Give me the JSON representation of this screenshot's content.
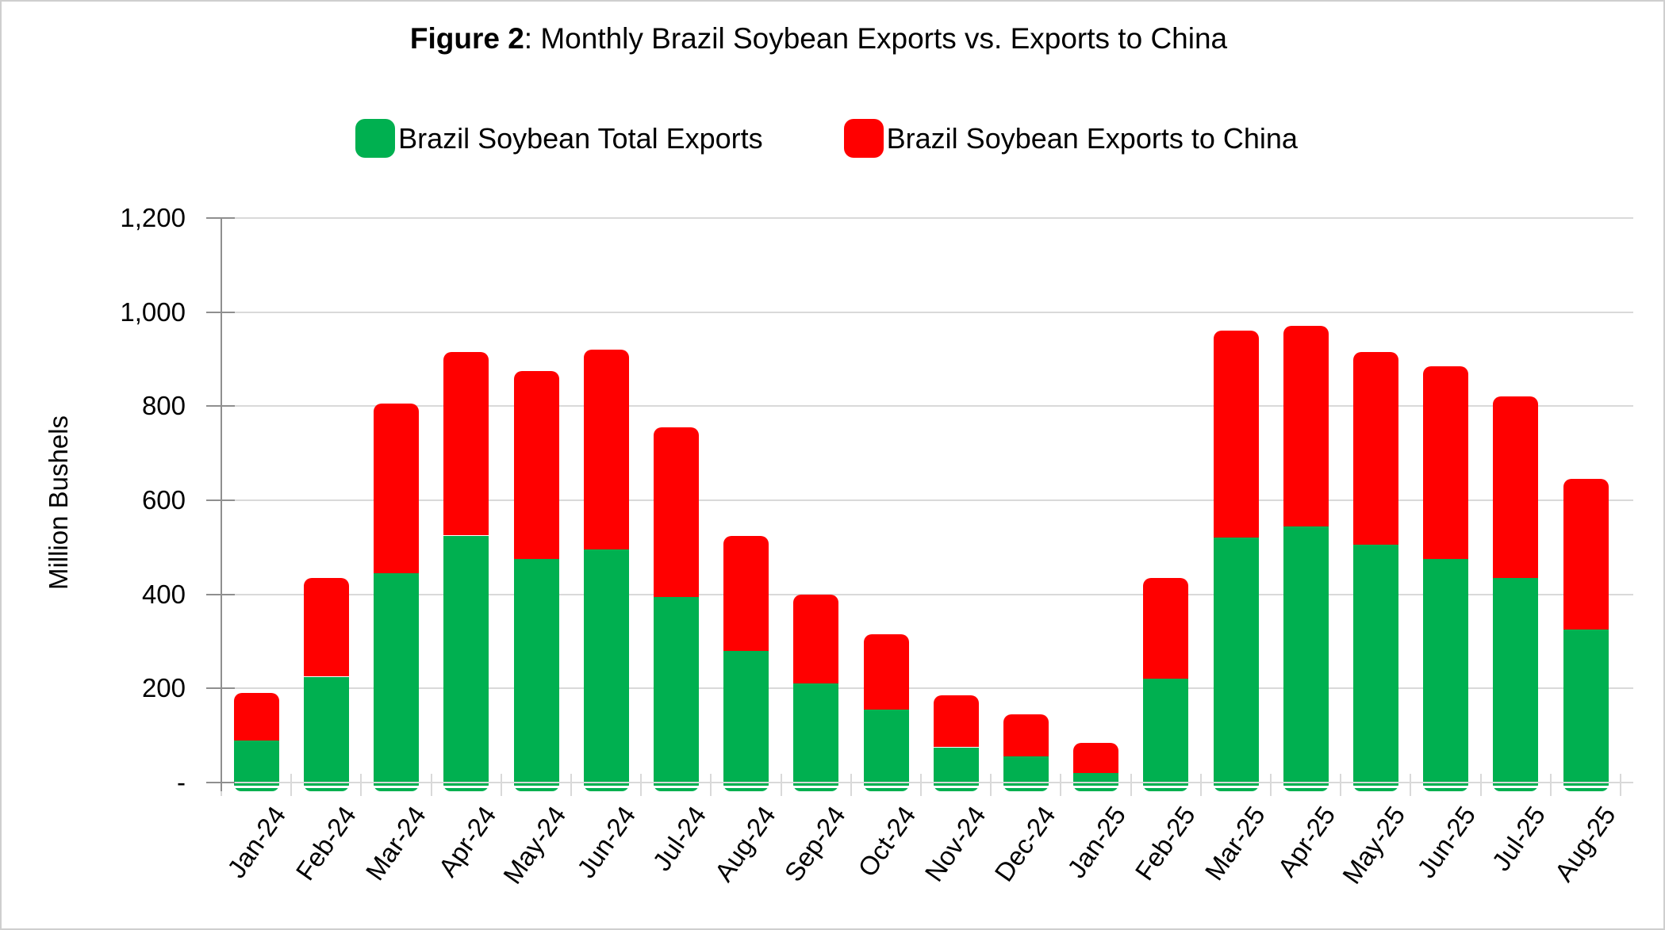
{
  "figure": {
    "title_prefix": "Figure 2",
    "title_rest": ": Monthly Brazil Soybean Exports vs. Exports to China"
  },
  "chart_data": {
    "type": "bar",
    "stacked": true,
    "title": "Figure 2: Monthly Brazil Soybean Exports vs. Exports to China",
    "categories": [
      "Jan-24",
      "Feb-24",
      "Mar-24",
      "Apr-24",
      "May-24",
      "Jun-24",
      "Jul-24",
      "Aug-24",
      "Sep-24",
      "Oct-24",
      "Nov-24",
      "Dec-24",
      "Jan-25",
      "Feb-25",
      "Mar-25",
      "Apr-25",
      "May-25",
      "Jun-25",
      "Jul-25",
      "Aug-25"
    ],
    "series": [
      {
        "name": "Brazil Soybean Total Exports",
        "color": "#00B050",
        "values": [
          90,
          225,
          445,
          525,
          475,
          495,
          395,
          280,
          210,
          155,
          75,
          55,
          20,
          220,
          520,
          545,
          505,
          475,
          435,
          325
        ]
      },
      {
        "name": "Brazil Soybean Exports to China",
        "color": "#FF0000",
        "values": [
          100,
          210,
          360,
          390,
          400,
          425,
          360,
          245,
          190,
          160,
          110,
          90,
          65,
          215,
          440,
          425,
          410,
          410,
          385,
          320
        ]
      }
    ],
    "xlabel": "",
    "ylabel": "Million Bushels",
    "ylim": [
      0,
      1200
    ],
    "ytick_step": 200,
    "ytick_labels": [
      "-",
      "200",
      "400",
      "600",
      "800",
      "1,000",
      "1,200"
    ],
    "grid": true,
    "legend_position": "top"
  }
}
